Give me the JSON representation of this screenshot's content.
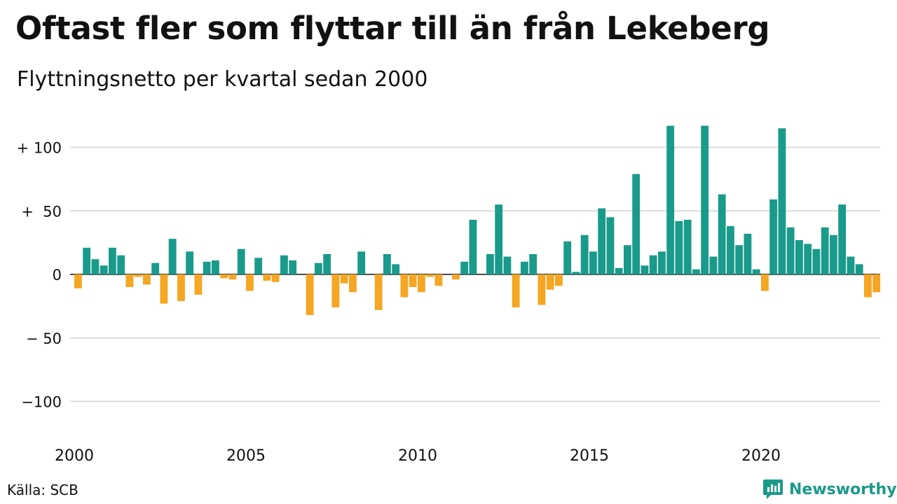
{
  "title": "Oftast fler som flyttar till än från Lekeberg",
  "subtitle": "Flyttningsnetto per kvartal sedan 2000",
  "source": "Källa: SCB",
  "brand": "Newsworthy",
  "colors": {
    "positive": "#1a9a8a",
    "negative": "#f5a623",
    "grid": "#dcdcdc",
    "axis": "#111111"
  },
  "chart_data": {
    "type": "bar",
    "x_start": "2000 Q1",
    "xticks": [
      "2000",
      "2005",
      "2010",
      "2015",
      "2020"
    ],
    "yticks": [
      "+ 100",
      "+  50",
      "0",
      "− 50",
      "−100"
    ],
    "ylim": [
      -120,
      120
    ],
    "grid": true,
    "values": [
      -11,
      21,
      12,
      7,
      21,
      15,
      -10,
      -2,
      -8,
      9,
      -23,
      28,
      -21,
      18,
      -16,
      10,
      11,
      -3,
      -4,
      20,
      -13,
      13,
      -5,
      -6,
      15,
      11,
      0,
      -32,
      9,
      16,
      -26,
      -7,
      -14,
      18,
      0,
      -28,
      16,
      8,
      -18,
      -10,
      -14,
      -2,
      -9,
      0,
      -4,
      10,
      43,
      0,
      16,
      55,
      14,
      -26,
      10,
      16,
      -24,
      -12,
      -9,
      26,
      2,
      31,
      18,
      52,
      45,
      5,
      23,
      79,
      7,
      15,
      18,
      117,
      42,
      43,
      4,
      117,
      14,
      63,
      38,
      23,
      32,
      4,
      -13,
      59,
      115,
      37,
      27,
      24,
      20,
      37,
      31,
      55,
      14,
      8,
      -18,
      -14
    ]
  }
}
